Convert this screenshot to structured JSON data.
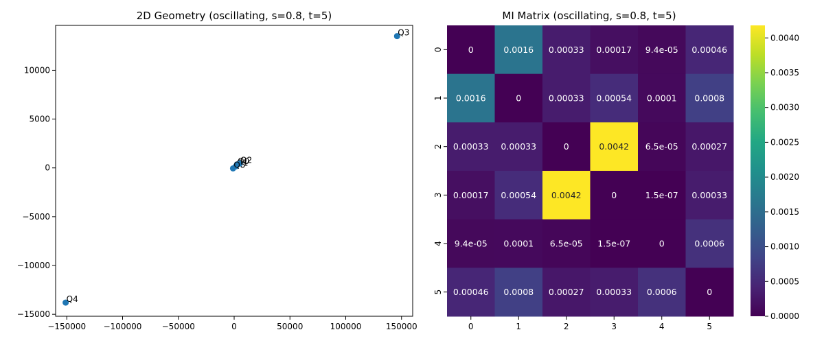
{
  "chart_data": [
    {
      "type": "scatter",
      "title": "2D Geometry (oscillating, s=0.8, t=5)",
      "xlabel": "",
      "ylabel": "",
      "xlim": [
        -160000,
        160000
      ],
      "ylim": [
        -15200,
        14600
      ],
      "xticks": [
        -150000,
        -100000,
        -50000,
        0,
        50000,
        100000,
        150000
      ],
      "yticks": [
        -15000,
        -10000,
        -5000,
        0,
        5000,
        10000
      ],
      "xtick_labels": [
        "−150000",
        "−100000",
        "−50000",
        "0",
        "50000",
        "100000",
        "150000"
      ],
      "ytick_labels": [
        "−15000",
        "−10000",
        "−5000",
        "0",
        "5000",
        "10000"
      ],
      "marker_color": "#1f77b4",
      "grid": false,
      "points": [
        {
          "label": "Q0",
          "x": 2500,
          "y": 350
        },
        {
          "label": "Q1",
          "x": 1500,
          "y": 150
        },
        {
          "label": "Q2",
          "x": 5000,
          "y": 450
        },
        {
          "label": "Q3",
          "x": 146000,
          "y": 13500
        },
        {
          "label": "Q4",
          "x": -151000,
          "y": -13800
        },
        {
          "label": "Q5",
          "x": -1000,
          "y": -50
        }
      ]
    },
    {
      "type": "heatmap",
      "title": "MI Matrix (oscillating, s=0.8, t=5)",
      "colormap": "viridis",
      "vmin": 0,
      "vmax": 0.00418,
      "row_labels": [
        "0",
        "1",
        "2",
        "3",
        "4",
        "5"
      ],
      "col_labels": [
        "0",
        "1",
        "2",
        "3",
        "4",
        "5"
      ],
      "values": [
        [
          0,
          0.0016,
          0.00033,
          0.00017,
          9.4e-05,
          0.00046
        ],
        [
          0.0016,
          0,
          0.00033,
          0.00054,
          0.0001,
          0.0008
        ],
        [
          0.00033,
          0.00033,
          0,
          0.0042,
          6.5e-05,
          0.00027
        ],
        [
          0.00017,
          0.00054,
          0.0042,
          0,
          1.5e-07,
          0.00033
        ],
        [
          9.4e-05,
          0.0001,
          6.5e-05,
          1.5e-07,
          0,
          0.0006
        ],
        [
          0.00046,
          0.0008,
          0.00027,
          0.00033,
          0.0006,
          0
        ]
      ],
      "annotations": [
        [
          "0",
          "0.0016",
          "0.00033",
          "0.00017",
          "9.4e-05",
          "0.00046"
        ],
        [
          "0.0016",
          "0",
          "0.00033",
          "0.00054",
          "0.0001",
          "0.0008"
        ],
        [
          "0.00033",
          "0.00033",
          "0",
          "0.0042",
          "6.5e-05",
          "0.00027"
        ],
        [
          "0.00017",
          "0.00054",
          "0.0042",
          "0",
          "1.5e-07",
          "0.00033"
        ],
        [
          "9.4e-05",
          "0.0001",
          "6.5e-05",
          "1.5e-07",
          "0",
          "0.0006"
        ],
        [
          "0.00046",
          "0.0008",
          "0.00027",
          "0.00033",
          "0.0006",
          "0"
        ]
      ],
      "colorbar_ticks": [
        0,
        0.0005,
        0.001,
        0.0015,
        0.002,
        0.0025,
        0.003,
        0.0035,
        0.004
      ],
      "colorbar_tick_labels": [
        "0.0000",
        "0.0005",
        "0.0010",
        "0.0015",
        "0.0020",
        "0.0025",
        "0.0030",
        "0.0035",
        "0.0040"
      ]
    }
  ]
}
